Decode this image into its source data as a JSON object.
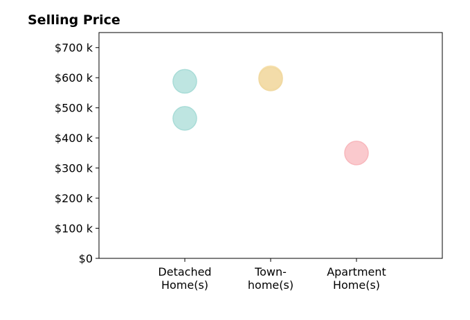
{
  "chart_data": {
    "type": "scatter",
    "title": "Selling Price",
    "xlabel": "",
    "ylabel": "",
    "categories": [
      [
        "Detached",
        "Home(s)"
      ],
      [
        "Town-",
        "home(s)"
      ],
      [
        "Apartment",
        "Home(s)"
      ]
    ],
    "y_ticks": [
      {
        "value": 0,
        "label": "$0"
      },
      {
        "value": 100000,
        "label": "$100 k"
      },
      {
        "value": 200000,
        "label": "$200 k"
      },
      {
        "value": 300000,
        "label": "$300 k"
      },
      {
        "value": 400000,
        "label": "$400 k"
      },
      {
        "value": 500000,
        "label": "$500 k"
      },
      {
        "value": 600000,
        "label": "$600 k"
      },
      {
        "value": 700000,
        "label": "$700 k"
      }
    ],
    "ylim": [
      0,
      750000
    ],
    "xlim": [
      0,
      4
    ],
    "grid": false,
    "points": [
      {
        "category": 0,
        "x": 1,
        "y": 588000,
        "color": "#a8dcd7"
      },
      {
        "category": 0,
        "x": 1,
        "y": 465000,
        "color": "#a8dcd7"
      },
      {
        "category": 1,
        "x": 2,
        "y": 600000,
        "color": "#f7e0ac"
      },
      {
        "category": 1,
        "x": 2,
        "y": 596000,
        "color": "#f0d8a0"
      },
      {
        "category": 2,
        "x": 3,
        "y": 350000,
        "color": "#f8b7bc"
      }
    ]
  }
}
